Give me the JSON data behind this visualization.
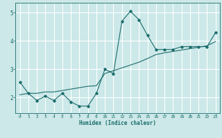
{
  "title": "",
  "xlabel": "Humidex (Indice chaleur)",
  "ylabel": "",
  "bg_color": "#cce8e8",
  "grid_color": "#ffffff",
  "line_color": "#1a6b6b",
  "xlim": [
    -0.5,
    23.5
  ],
  "ylim": [
    1.45,
    5.35
  ],
  "xticks": [
    0,
    1,
    2,
    3,
    4,
    5,
    6,
    7,
    8,
    9,
    10,
    11,
    12,
    13,
    14,
    15,
    16,
    17,
    18,
    19,
    20,
    21,
    22,
    23
  ],
  "yticks": [
    2,
    3,
    4,
    5
  ],
  "curve1_x": [
    0,
    1,
    2,
    3,
    4,
    5,
    6,
    7,
    8,
    9,
    10,
    11,
    12,
    13,
    14,
    15,
    16,
    17,
    18,
    19,
    20,
    21,
    22,
    23
  ],
  "curve1_y": [
    2.55,
    2.15,
    1.9,
    2.05,
    1.9,
    2.15,
    1.85,
    1.7,
    1.7,
    2.15,
    3.0,
    2.85,
    4.7,
    5.05,
    4.75,
    4.2,
    3.7,
    3.7,
    3.7,
    3.8,
    3.8,
    3.8,
    3.8,
    4.3
  ],
  "curve2_x": [
    0,
    1,
    2,
    3,
    4,
    5,
    6,
    7,
    8,
    9,
    10,
    11,
    12,
    13,
    14,
    15,
    16,
    17,
    18,
    19,
    20,
    21,
    22,
    23
  ],
  "curve2_y": [
    2.1,
    2.15,
    2.15,
    2.2,
    2.2,
    2.25,
    2.3,
    2.35,
    2.4,
    2.42,
    2.85,
    2.95,
    3.05,
    3.15,
    3.25,
    3.38,
    3.52,
    3.58,
    3.63,
    3.68,
    3.73,
    3.78,
    3.83,
    3.98
  ]
}
